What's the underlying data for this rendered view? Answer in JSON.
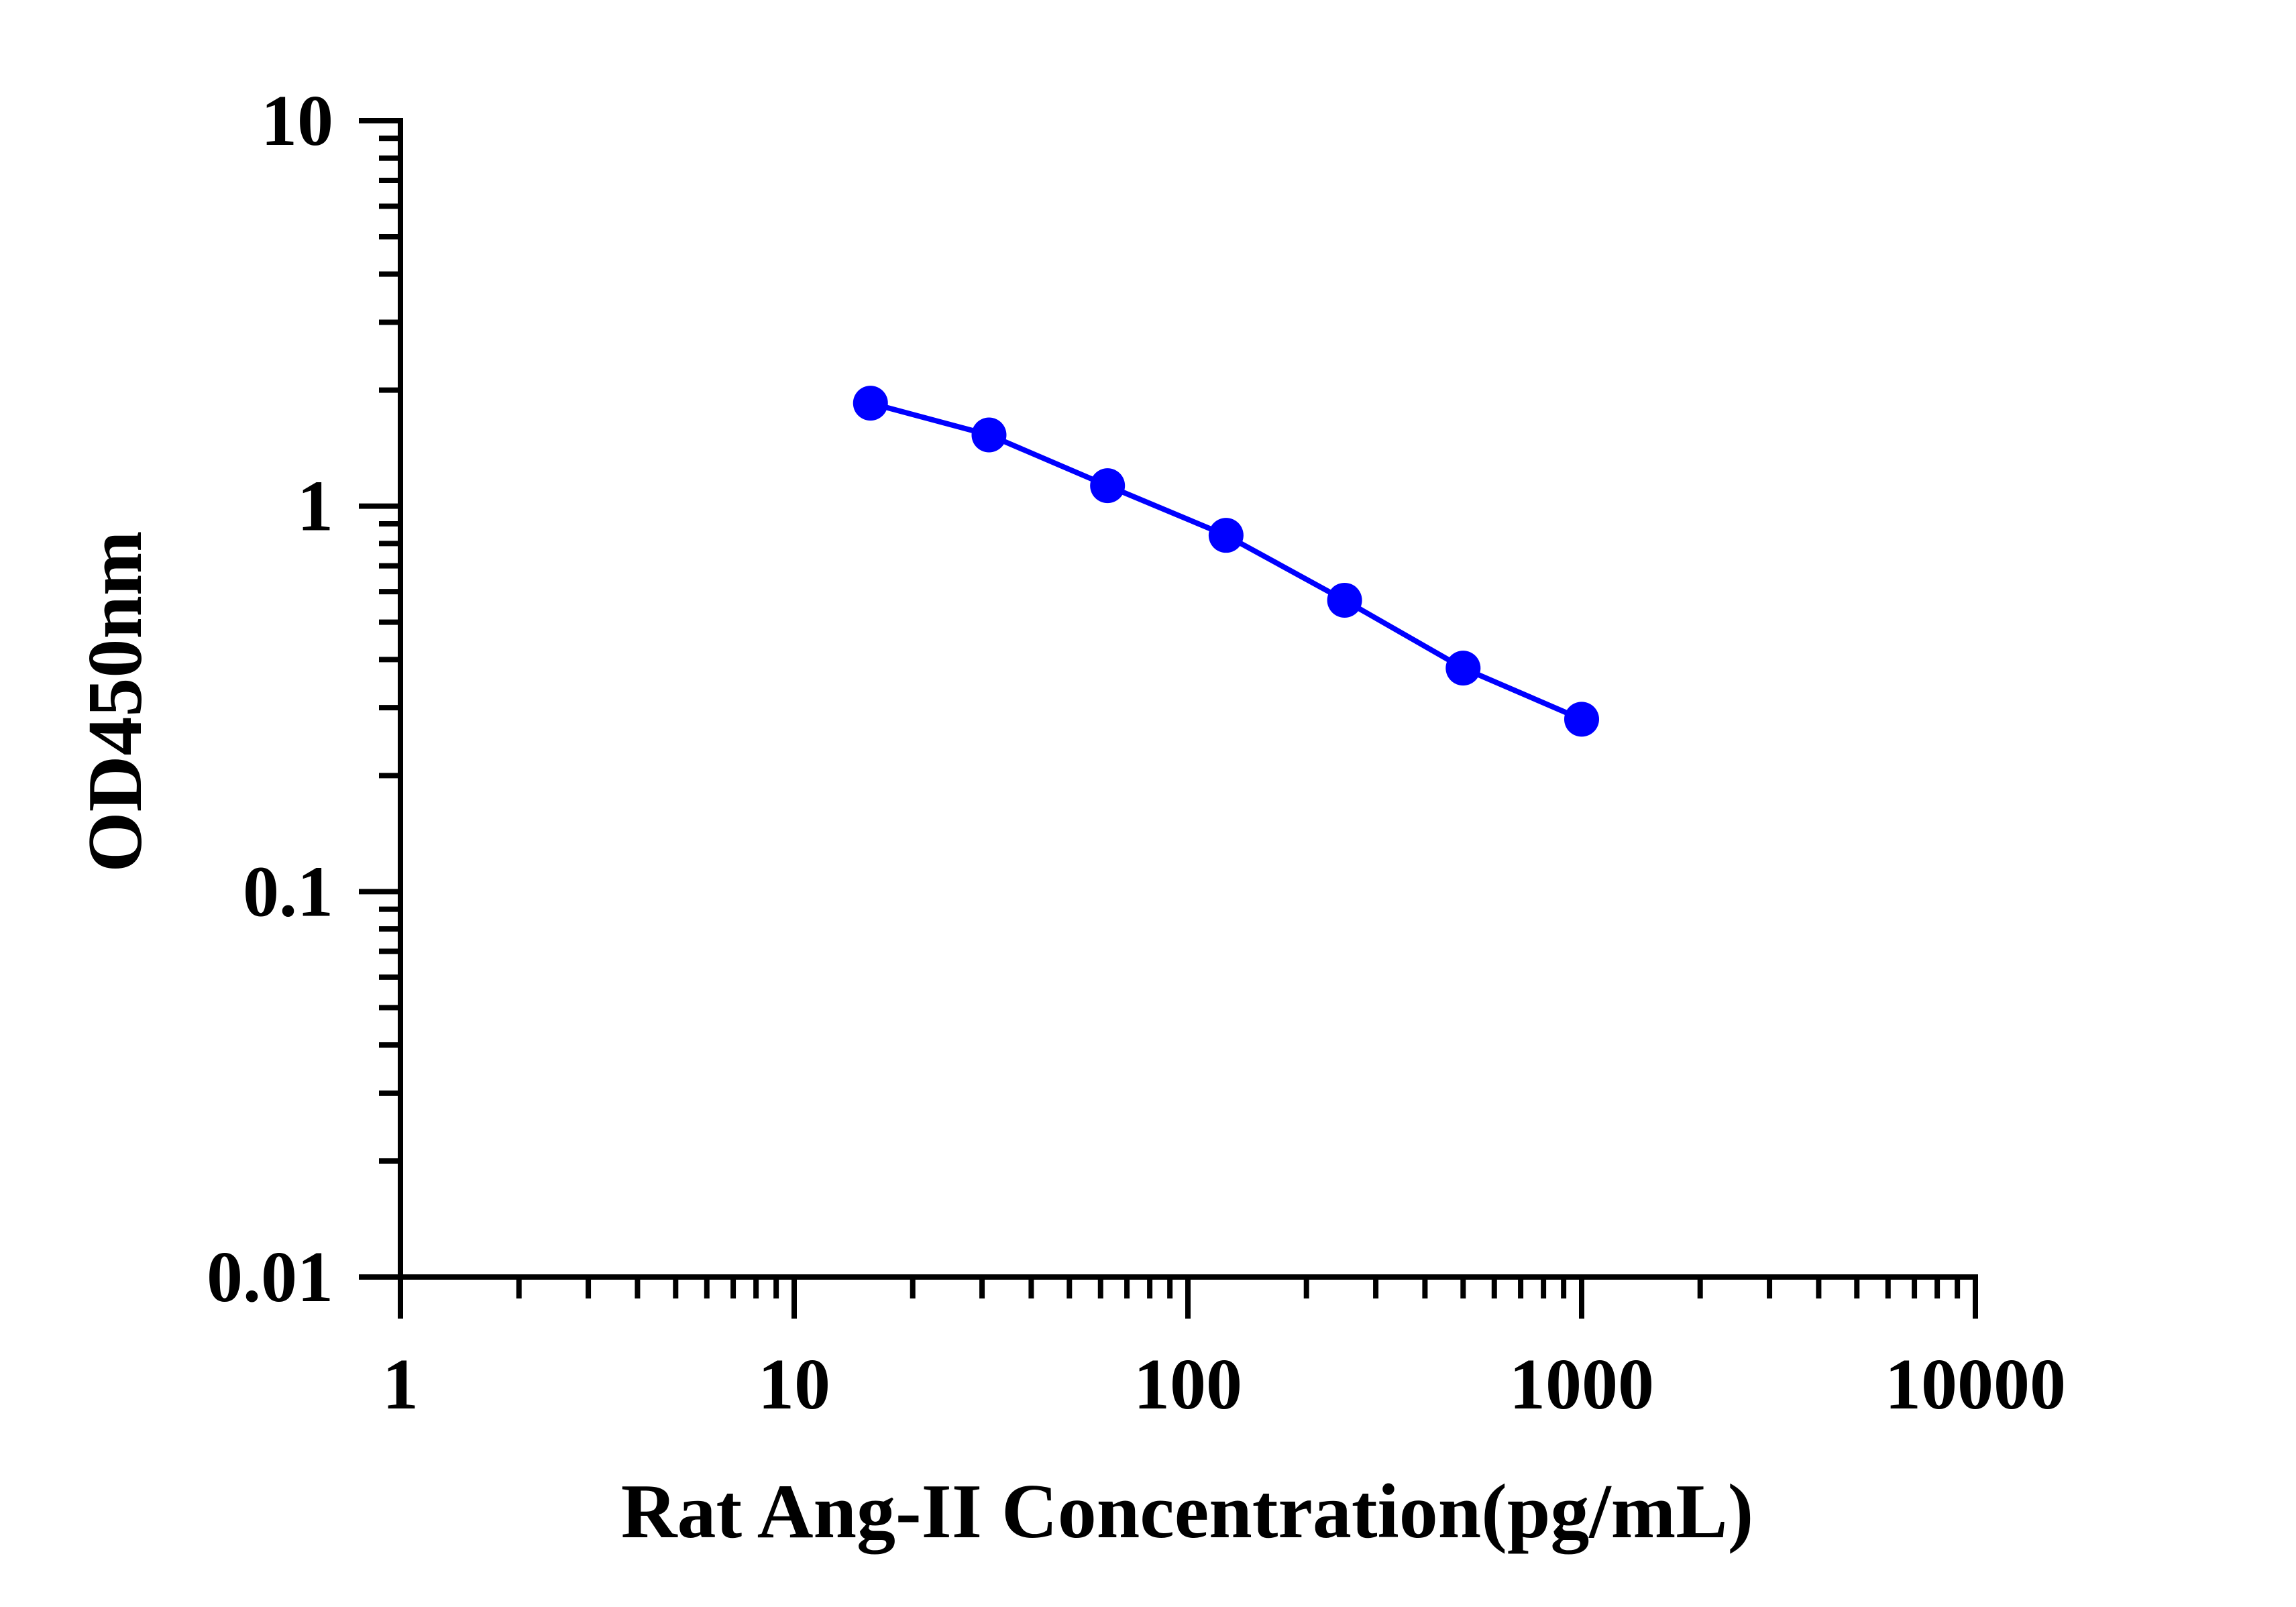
{
  "chart_data": {
    "type": "line",
    "title": "",
    "xlabel": "Rat Ang-II Concentration(pg/mL)",
    "ylabel": "OD450nm",
    "x_scale": "log",
    "y_scale": "log",
    "xlim": [
      1,
      10000
    ],
    "ylim": [
      0.01,
      10
    ],
    "x_ticks": [
      "1",
      "10",
      "100",
      "1000",
      "10000"
    ],
    "y_ticks": [
      "0.01",
      "0.1",
      "1",
      "10"
    ],
    "grid": false,
    "legend": "none",
    "series": [
      {
        "color": "#0000ff",
        "marker": "circle",
        "x": [
          15.625,
          31.25,
          62.5,
          125,
          250,
          500,
          1000
        ],
        "y": [
          1.85,
          1.53,
          1.13,
          0.84,
          0.57,
          0.38,
          0.28
        ]
      }
    ]
  }
}
